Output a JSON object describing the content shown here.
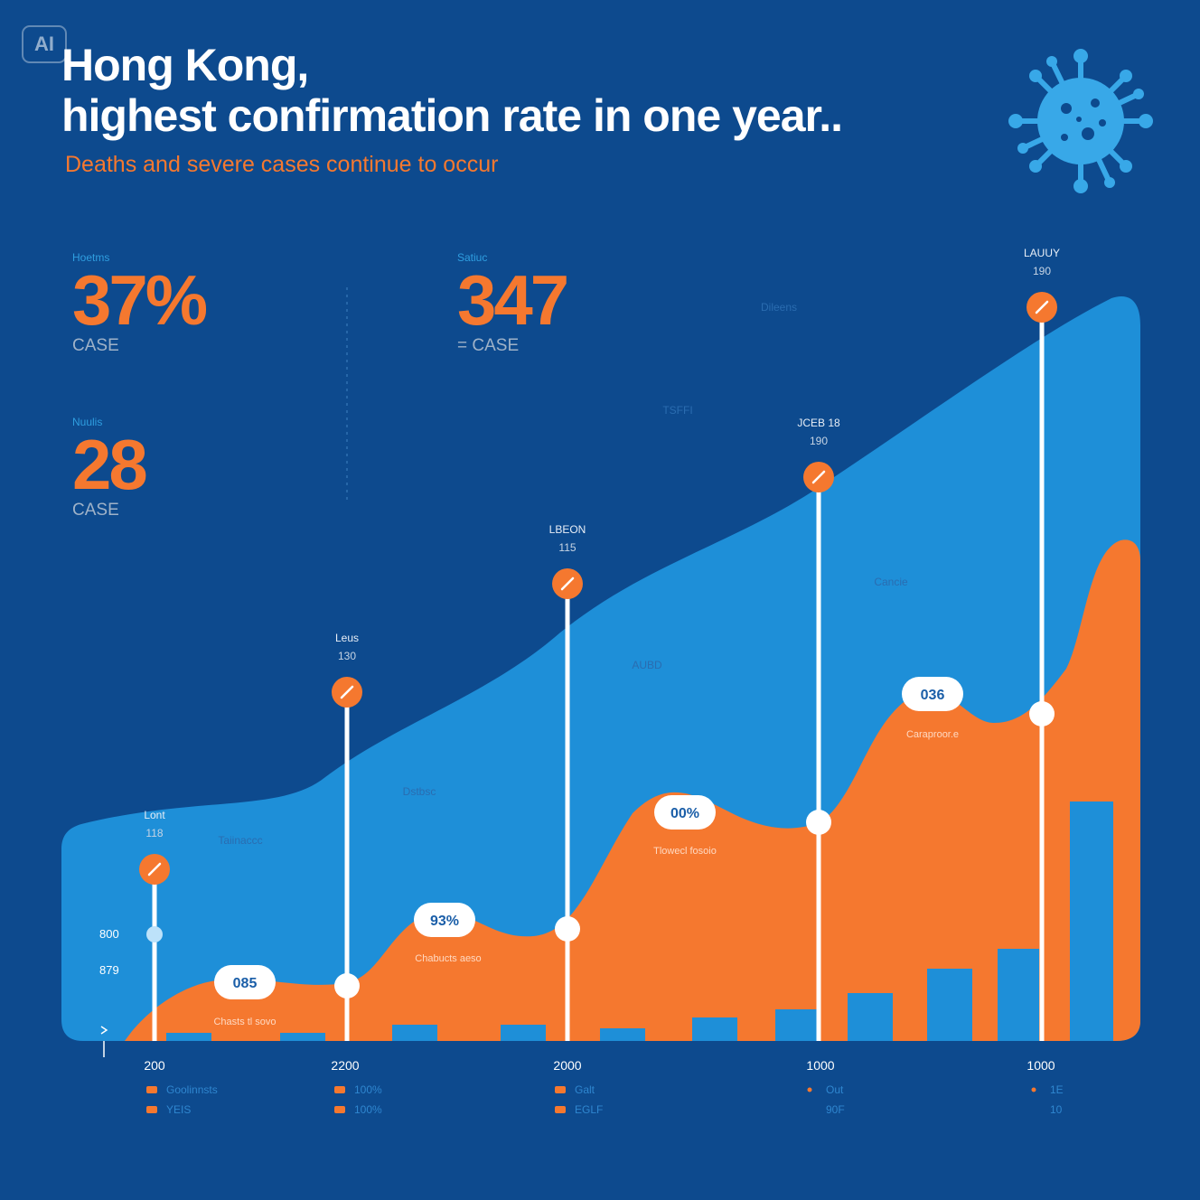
{
  "badge": "AI",
  "title_line1": "Hong Kong,",
  "title_line2": "highest confirmation rate in one year..",
  "subtitle": "Deaths and severe cases continue to occur",
  "stats": [
    {
      "label": "Hoetms",
      "value": "37%",
      "unit": "CASE"
    },
    {
      "label": "Nuulis",
      "value": "28",
      "unit": "CASE"
    },
    {
      "label": "Satiuc",
      "value": "347",
      "unit": "CASE"
    }
  ],
  "colors": {
    "background": "#0d4a8e",
    "area_blue": "#1e8fd8",
    "area_orange": "#f5782f",
    "bars": "#1e8fd8",
    "pins": "#ffffff",
    "marker": "#f5782f"
  },
  "chart_data": {
    "type": "area",
    "x_tick_labels": [
      "200",
      "2200",
      "2000",
      "1000",
      "1000"
    ],
    "y_tick_labels": [
      "800",
      "879"
    ],
    "series": [
      {
        "values": [
          28,
          40,
          55,
          68,
          80,
          95,
          100
        ]
      },
      {
        "values": [
          2,
          8,
          14,
          22,
          32,
          40,
          68
        ]
      }
    ],
    "bars": [
      0.9,
      0.9,
      1.8,
      1.8,
      1.4,
      2.6,
      3.5,
      5.3,
      8.0,
      10.2,
      26.5
    ],
    "pins": [
      {
        "label": "Lont",
        "value": "118",
        "callout": "085",
        "note": "Chasts tl sovo"
      },
      {
        "label": "Leus",
        "value": "130",
        "callout": "93%",
        "note": "Chabucts aeso"
      },
      {
        "label": "LBEON",
        "value": "115",
        "callout": "00%",
        "note": "Tlowecl fosoio"
      },
      {
        "label": "JCEB 18",
        "value": "190",
        "callout": "036",
        "note": "Caraproor.e"
      },
      {
        "label": "LAUUY",
        "value": "190"
      }
    ],
    "area_labels": [
      "Dileens",
      "TSFFI",
      "Dstbsc",
      "AUBD",
      "Cancie",
      "Taiinaccc"
    ],
    "legend_rows": [
      [
        "Goolinnsts",
        "100%",
        "Galt",
        "Out",
        "1E"
      ],
      [
        "YEIS",
        "100%",
        "EGLF",
        "90F",
        "10"
      ]
    ]
  }
}
